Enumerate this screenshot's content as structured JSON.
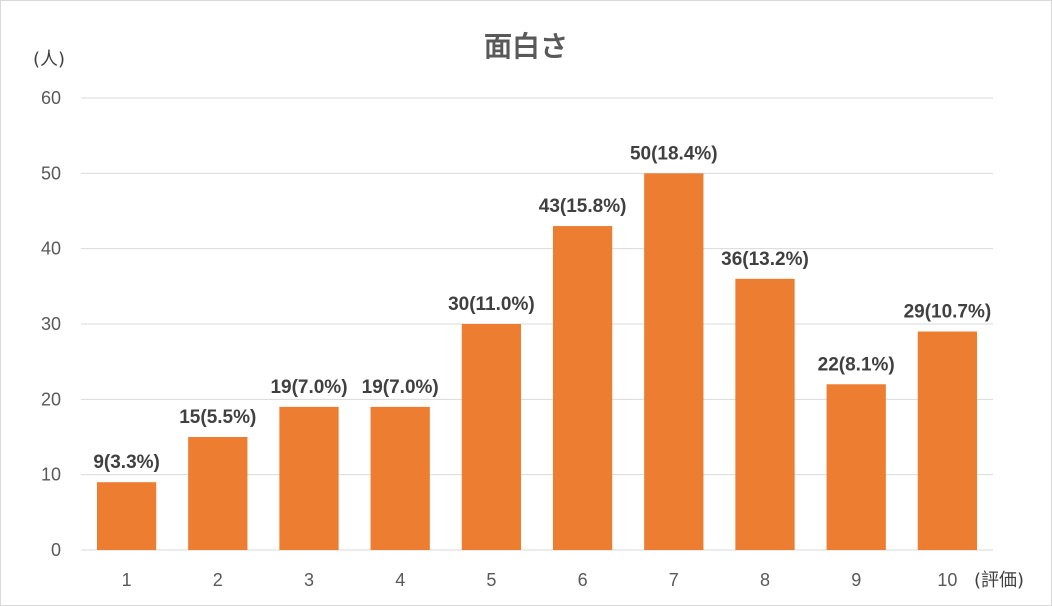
{
  "chart_data": {
    "type": "bar",
    "title": "面白さ",
    "ylabel": "(人)",
    "xlabel": "(評価)",
    "categories": [
      "1",
      "2",
      "3",
      "4",
      "5",
      "6",
      "7",
      "8",
      "9",
      "10"
    ],
    "values": [
      9,
      15,
      19,
      19,
      30,
      43,
      50,
      36,
      22,
      29
    ],
    "data_labels": [
      "9(3.3%)",
      "15(5.5%)",
      "19(7.0%)",
      "19(7.0%)",
      "30(11.0%)",
      "43(15.8%)",
      "50(18.4%)",
      "36(13.2%)",
      "22(8.1%)",
      "29(10.7%)"
    ],
    "yticks": [
      "0",
      "10",
      "20",
      "30",
      "40",
      "50",
      "60"
    ],
    "ylim": [
      0,
      60
    ],
    "grid": true,
    "legend": "none",
    "bar_color": "#ED7D31",
    "gridline_color": "#D9D9D9",
    "text_color": "#595959"
  }
}
